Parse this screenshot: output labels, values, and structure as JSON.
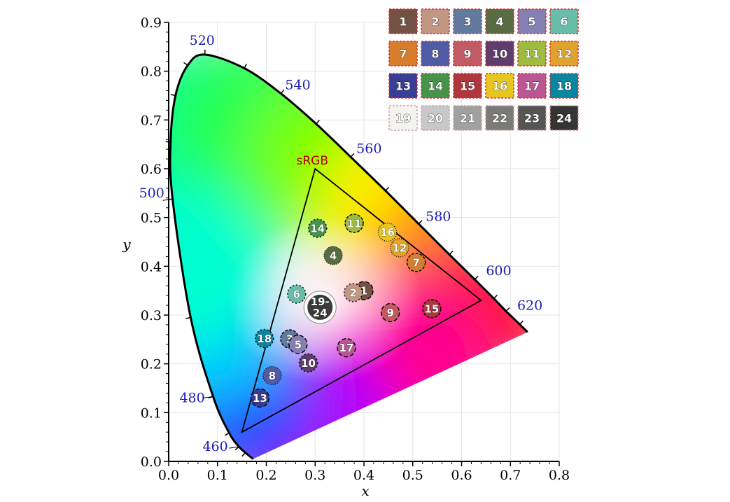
{
  "chart_data": {
    "type": "scatter",
    "xlabel": "x",
    "ylabel": "y",
    "xlim": [
      0.0,
      0.8
    ],
    "ylim": [
      0.0,
      0.9
    ],
    "x_ticks": [
      "0.0",
      "0.1",
      "0.2",
      "0.3",
      "0.4",
      "0.5",
      "0.6",
      "0.7",
      "0.8"
    ],
    "y_ticks": [
      "0.0",
      "0.1",
      "0.2",
      "0.3",
      "0.4",
      "0.5",
      "0.6",
      "0.7",
      "0.8",
      "0.9"
    ],
    "grid": true,
    "locus": [
      {
        "wl": 460,
        "x": 0.144,
        "y": 0.03
      },
      {
        "wl": 470,
        "x": 0.124,
        "y": 0.058
      },
      {
        "wl": 480,
        "x": 0.091,
        "y": 0.133
      },
      {
        "wl": 490,
        "x": 0.045,
        "y": 0.295
      },
      {
        "wl": 500,
        "x": 0.008,
        "y": 0.538
      },
      {
        "wl": 505,
        "x": 0.004,
        "y": 0.655
      },
      {
        "wl": 510,
        "x": 0.014,
        "y": 0.75
      },
      {
        "wl": 515,
        "x": 0.039,
        "y": 0.812
      },
      {
        "wl": 520,
        "x": 0.074,
        "y": 0.834
      },
      {
        "wl": 530,
        "x": 0.155,
        "y": 0.806
      },
      {
        "wl": 540,
        "x": 0.23,
        "y": 0.754
      },
      {
        "wl": 550,
        "x": 0.302,
        "y": 0.692
      },
      {
        "wl": 560,
        "x": 0.373,
        "y": 0.624
      },
      {
        "wl": 570,
        "x": 0.444,
        "y": 0.555
      },
      {
        "wl": 580,
        "x": 0.512,
        "y": 0.487
      },
      {
        "wl": 590,
        "x": 0.575,
        "y": 0.424
      },
      {
        "wl": 600,
        "x": 0.627,
        "y": 0.373
      },
      {
        "wl": 610,
        "x": 0.666,
        "y": 0.334
      },
      {
        "wl": 620,
        "x": 0.691,
        "y": 0.308
      },
      {
        "wl": 640,
        "x": 0.719,
        "y": 0.281
      },
      {
        "wl": 700,
        "x": 0.735,
        "y": 0.265
      },
      {
        "wl": 400,
        "x": 0.173,
        "y": 0.005
      },
      {
        "wl": 450,
        "x": 0.157,
        "y": 0.018
      }
    ],
    "wavelength_labels": [
      {
        "label": "460",
        "x": 0.144,
        "y": 0.03
      },
      {
        "label": "480",
        "x": 0.091,
        "y": 0.133
      },
      {
        "label": "500",
        "x": 0.008,
        "y": 0.538
      },
      {
        "label": "520",
        "x": 0.074,
        "y": 0.834
      },
      {
        "label": "540",
        "x": 0.23,
        "y": 0.754
      },
      {
        "label": "560",
        "x": 0.373,
        "y": 0.624
      },
      {
        "label": "580",
        "x": 0.512,
        "y": 0.487
      },
      {
        "label": "600",
        "x": 0.627,
        "y": 0.373
      },
      {
        "label": "620",
        "x": 0.691,
        "y": 0.308
      }
    ],
    "srgb_gamut": {
      "label": "sRGB",
      "red": [
        0.64,
        0.33
      ],
      "green": [
        0.3,
        0.6
      ],
      "blue": [
        0.15,
        0.06
      ]
    },
    "points": [
      {
        "label": "1",
        "x": 0.4,
        "y": 0.35,
        "color": "#735244"
      },
      {
        "label": "2",
        "x": 0.378,
        "y": 0.346,
        "color": "#c29682"
      },
      {
        "label": "3",
        "x": 0.248,
        "y": 0.251,
        "color": "#627a9d"
      },
      {
        "label": "4",
        "x": 0.337,
        "y": 0.422,
        "color": "#576c43"
      },
      {
        "label": "5",
        "x": 0.265,
        "y": 0.24,
        "color": "#8580b1"
      },
      {
        "label": "6",
        "x": 0.262,
        "y": 0.343,
        "color": "#67bdaa"
      },
      {
        "label": "7",
        "x": 0.507,
        "y": 0.408,
        "color": "#d67e2c"
      },
      {
        "label": "8",
        "x": 0.212,
        "y": 0.176,
        "color": "#505ba6"
      },
      {
        "label": "9",
        "x": 0.454,
        "y": 0.305,
        "color": "#c15a63"
      },
      {
        "label": "10",
        "x": 0.286,
        "y": 0.202,
        "color": "#5e3c6c"
      },
      {
        "label": "11",
        "x": 0.38,
        "y": 0.488,
        "color": "#9dbc40"
      },
      {
        "label": "12",
        "x": 0.473,
        "y": 0.438,
        "color": "#e0a32e"
      },
      {
        "label": "13",
        "x": 0.187,
        "y": 0.13,
        "color": "#383d96"
      },
      {
        "label": "14",
        "x": 0.305,
        "y": 0.478,
        "color": "#469449"
      },
      {
        "label": "15",
        "x": 0.539,
        "y": 0.313,
        "color": "#af363c"
      },
      {
        "label": "16",
        "x": 0.448,
        "y": 0.47,
        "color": "#e7c71f"
      },
      {
        "label": "17",
        "x": 0.364,
        "y": 0.233,
        "color": "#bb5695"
      },
      {
        "label": "18",
        "x": 0.196,
        "y": 0.252,
        "color": "#0885a1"
      },
      {
        "label": "19-\n24",
        "x": 0.31,
        "y": 0.316,
        "color": "#3a3a3a"
      }
    ]
  },
  "legend_chips": [
    {
      "label": "1",
      "color": "#735244"
    },
    {
      "label": "2",
      "color": "#c29682"
    },
    {
      "label": "3",
      "color": "#627a9d"
    },
    {
      "label": "4",
      "color": "#576c43"
    },
    {
      "label": "5",
      "color": "#8580b1"
    },
    {
      "label": "6",
      "color": "#67bdaa"
    },
    {
      "label": "7",
      "color": "#d67e2c"
    },
    {
      "label": "8",
      "color": "#505ba6"
    },
    {
      "label": "9",
      "color": "#c15a63"
    },
    {
      "label": "10",
      "color": "#5e3c6c"
    },
    {
      "label": "11",
      "color": "#9dbc40"
    },
    {
      "label": "12",
      "color": "#e0a32e"
    },
    {
      "label": "13",
      "color": "#383d96"
    },
    {
      "label": "14",
      "color": "#469449"
    },
    {
      "label": "15",
      "color": "#af363c"
    },
    {
      "label": "16",
      "color": "#e7c71f"
    },
    {
      "label": "17",
      "color": "#bb5695"
    },
    {
      "label": "18",
      "color": "#0885a1"
    },
    {
      "label": "19",
      "color": "#f3f3f2"
    },
    {
      "label": "20",
      "color": "#c8c8c8"
    },
    {
      "label": "21",
      "color": "#a0a0a0"
    },
    {
      "label": "22",
      "color": "#7a7a79"
    },
    {
      "label": "23",
      "color": "#555555"
    },
    {
      "label": "24",
      "color": "#343434"
    }
  ]
}
